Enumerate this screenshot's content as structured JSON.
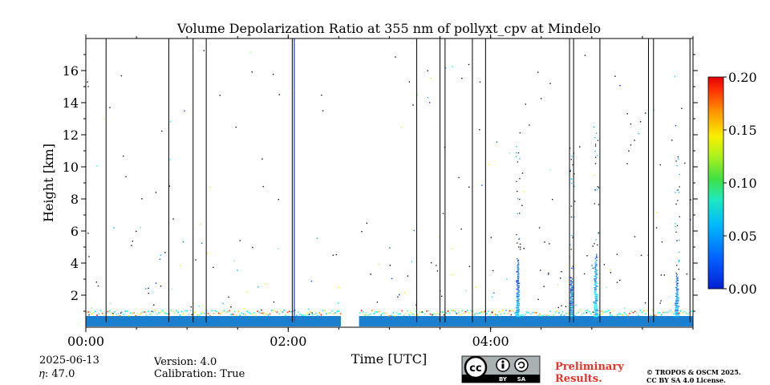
{
  "chart_data": {
    "type": "heatmap",
    "title": "Volume Depolarization Ratio at 355 nm of pollyxt_cpv at Mindelo",
    "xlabel": "Time [UTC]",
    "ylabel": "Height [km]",
    "x_range_hours": [
      0,
      6
    ],
    "x_ticks": [
      {
        "hour": 0,
        "label": "00:00"
      },
      {
        "hour": 2,
        "label": "02:00"
      },
      {
        "hour": 4,
        "label": "04:00"
      }
    ],
    "ylim": [
      0,
      18
    ],
    "y_ticks": [
      {
        "value": 2,
        "label": "2"
      },
      {
        "value": 4,
        "label": "4"
      },
      {
        "value": 6,
        "label": "6"
      },
      {
        "value": 8,
        "label": "8"
      },
      {
        "value": 10,
        "label": "10"
      },
      {
        "value": 12,
        "label": "12"
      },
      {
        "value": 14,
        "label": "14"
      },
      {
        "value": 16,
        "label": "16"
      }
    ],
    "colorbar": {
      "range": [
        0.0,
        0.2
      ],
      "ticks": [
        {
          "value": 0.0,
          "label": "0.00"
        },
        {
          "value": 0.05,
          "label": "0.05"
        },
        {
          "value": 0.1,
          "label": "0.10"
        },
        {
          "value": 0.15,
          "label": "0.15"
        },
        {
          "value": 0.2,
          "label": "0.20"
        }
      ],
      "colormap": "jet"
    },
    "data_gap_hours": [
      2.52,
      2.7
    ],
    "boundary_layer_top_km": 0.7,
    "profile_lines_hours": [
      0.2,
      0.82,
      1.06,
      1.19,
      2.04,
      2.06,
      3.27,
      3.5,
      3.55,
      3.82,
      3.95,
      4.78,
      4.82,
      5.08,
      5.56,
      5.61,
      5.97
    ],
    "depolarization_plumes": [
      {
        "hour": 4.27,
        "top_km": 4.3,
        "peak_ratio": 0.05
      },
      {
        "hour": 4.8,
        "top_km": 3.2,
        "peak_ratio": 0.05
      },
      {
        "hour": 5.04,
        "top_km": 4.6,
        "peak_ratio": 0.06
      },
      {
        "hour": 5.84,
        "top_km": 3.4,
        "peak_ratio": 0.05
      }
    ]
  },
  "footer": {
    "date": "2025-06-13",
    "eta": "𝜂: 47.0",
    "version": "Version: 4.0",
    "calibration": "Calibration: True",
    "cc_badge": "cc",
    "cc_by": "BY",
    "cc_sa": "SA",
    "preliminary_line1": "Preliminary",
    "preliminary_line2": "Results.",
    "copyright_line1": "© TROPOS & OSCM 2025.",
    "copyright_line2": "CC BY SA 4.0 License."
  },
  "colors": {
    "preliminary": "#e8332b",
    "boundary_layer": "#1b7fd0",
    "badge_bg": "#aab1b3",
    "badge_bar": "#000000"
  }
}
